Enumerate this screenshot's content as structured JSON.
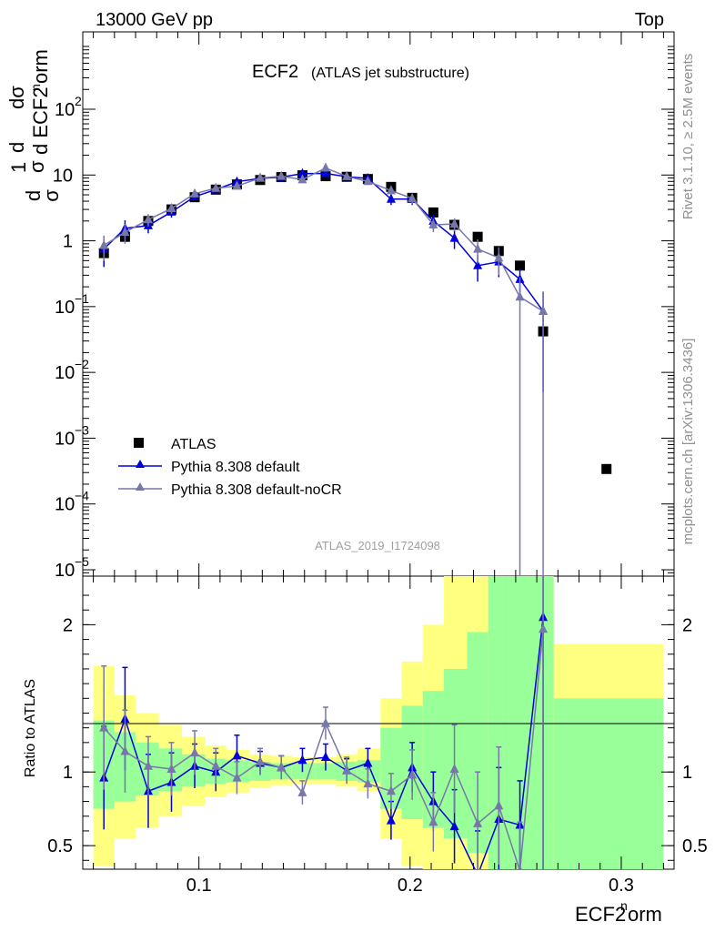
{
  "header": {
    "left": "13000 GeV pp",
    "right": "Top"
  },
  "watermarks": {
    "rivet": "Rivet 3.1.10, ≥ 2.5M events",
    "mcplots": "mcplots.cern.ch [arXiv:1306.3436]",
    "analysis": "ATLAS_2019_I1724098"
  },
  "chart_data": [
    {
      "type": "scatter",
      "panel": "main",
      "title": "ECF2",
      "subtitle": "(ATLAS jet substructure)",
      "ylabel": "1/σ dσ/d ECF2^norm",
      "yscale": "log",
      "xlim": [
        0.045,
        0.325
      ],
      "ylim": [
        8e-06,
        1500
      ],
      "y_ticks": [
        {
          "v": 1e-05,
          "m": "10",
          "e": "−5"
        },
        {
          "v": 0.0001,
          "m": "10",
          "e": "−4"
        },
        {
          "v": 0.001,
          "m": "10",
          "e": "−3"
        },
        {
          "v": 0.01,
          "m": "10",
          "e": "−2"
        },
        {
          "v": 0.1,
          "m": "10",
          "e": "−1"
        },
        {
          "v": 1,
          "m": "1",
          "e": ""
        },
        {
          "v": 10,
          "m": "10",
          "e": ""
        },
        {
          "v": 100,
          "m": "10",
          "e": "2"
        }
      ],
      "legend": [
        "ATLAS",
        "Pythia 8.308 default",
        "Pythia 8.308 default-noCR"
      ],
      "legend_position": "center-left",
      "series": [
        {
          "name": "ATLAS",
          "color": "#000000",
          "marker": "square",
          "x": [
            0.055,
            0.065,
            0.076,
            0.087,
            0.098,
            0.108,
            0.118,
            0.129,
            0.139,
            0.149,
            0.16,
            0.17,
            0.18,
            0.191,
            0.201,
            0.211,
            0.221,
            0.232,
            0.242,
            0.252,
            0.263,
            0.293
          ],
          "y": [
            0.65,
            1.15,
            2.0,
            3.0,
            4.6,
            6.0,
            7.2,
            8.4,
            9.3,
            9.9,
            9.6,
            9.4,
            8.7,
            6.6,
            4.5,
            2.7,
            1.75,
            1.15,
            0.7,
            0.42,
            0.042,
            0.00034
          ]
        },
        {
          "name": "Pythia 8.308 default",
          "color": "#0000dd",
          "marker": "triangle",
          "x": [
            0.055,
            0.065,
            0.076,
            0.087,
            0.098,
            0.108,
            0.118,
            0.129,
            0.139,
            0.149,
            0.16,
            0.17,
            0.18,
            0.191,
            0.201,
            0.211,
            0.221,
            0.232,
            0.242,
            0.252,
            0.263
          ],
          "y": [
            0.75,
            1.55,
            1.7,
            2.75,
            4.7,
            6.0,
            7.9,
            8.9,
            9.3,
            10.5,
            10.6,
            9.4,
            8.9,
            4.3,
            4.3,
            2.0,
            1.1,
            0.42,
            0.48,
            0.26,
            0.085
          ],
          "err": [
            0.35,
            0.5,
            0.4,
            0.5,
            0.6,
            0.6,
            0.8,
            0.8,
            0.8,
            0.9,
            0.9,
            0.9,
            0.9,
            0.8,
            0.8,
            0.5,
            0.35,
            0.18,
            0.2,
            0.12,
            0.08
          ]
        },
        {
          "name": "Pythia 8.308 default-noCR",
          "color": "#7777aa",
          "marker": "triangle",
          "x": [
            0.055,
            0.065,
            0.076,
            0.087,
            0.098,
            0.108,
            0.118,
            0.129,
            0.139,
            0.149,
            0.16,
            0.17,
            0.18,
            0.191,
            0.201,
            0.211,
            0.221,
            0.232,
            0.242,
            0.252,
            0.263
          ],
          "y": [
            0.85,
            1.35,
            2.1,
            3.1,
            5.2,
            6.3,
            6.8,
            9.0,
            9.6,
            8.5,
            12.8,
            9.5,
            8.0,
            5.8,
            4.4,
            1.75,
            1.8,
            0.75,
            0.55,
            0.14,
            0.085
          ],
          "err": [
            0.35,
            0.45,
            0.45,
            0.55,
            0.65,
            0.6,
            0.7,
            0.8,
            0.8,
            0.8,
            1.0,
            0.9,
            0.9,
            0.8,
            0.8,
            0.4,
            0.4,
            0.3,
            0.25,
            0.14,
            0.085
          ]
        }
      ]
    },
    {
      "type": "scatter",
      "panel": "ratio",
      "ylabel": "Ratio to ATLAS",
      "xlabel": "ECF2^norm",
      "xlim": [
        0.045,
        0.325
      ],
      "ylim": [
        0.34,
        2.33
      ],
      "x_ticks": [
        "0.1",
        "0.2",
        "0.3"
      ],
      "y_ticks": [
        "0.5",
        "1",
        "2"
      ],
      "bands": {
        "edges": [
          0.05,
          0.06,
          0.07,
          0.081,
          0.092,
          0.103,
          0.113,
          0.124,
          0.134,
          0.144,
          0.155,
          0.165,
          0.175,
          0.186,
          0.196,
          0.206,
          0.216,
          0.227,
          0.237,
          0.247,
          0.258,
          0.268,
          0.32
        ],
        "inner_lo": [
          0.75,
          0.8,
          0.84,
          0.87,
          0.9,
          0.92,
          0.93,
          0.94,
          0.95,
          0.95,
          0.95,
          0.94,
          0.93,
          0.75,
          0.68,
          0.62,
          0.55,
          0.45,
          0.34,
          0.34,
          0.34,
          0.34
        ],
        "inner_hi": [
          1.35,
          1.27,
          1.2,
          1.16,
          1.12,
          1.09,
          1.08,
          1.07,
          1.06,
          1.06,
          1.06,
          1.07,
          1.08,
          1.3,
          1.45,
          1.55,
          1.7,
          1.95,
          2.33,
          2.33,
          2.33,
          1.5
        ],
        "outer_lo": [
          0.36,
          0.55,
          0.62,
          0.7,
          0.77,
          0.83,
          0.86,
          0.89,
          0.91,
          0.92,
          0.92,
          0.9,
          0.87,
          0.55,
          0.36,
          0.34,
          0.34,
          0.34,
          0.34,
          0.34,
          0.34,
          0.34
        ],
        "outer_hi": [
          1.72,
          1.52,
          1.4,
          1.32,
          1.24,
          1.18,
          1.15,
          1.12,
          1.11,
          1.1,
          1.1,
          1.12,
          1.16,
          1.5,
          1.75,
          2.0,
          2.33,
          2.33,
          2.33,
          2.33,
          2.33,
          1.87
        ]
      },
      "series": [
        {
          "name": "Pythia 8.308 default",
          "color": "#0000dd",
          "x": [
            0.055,
            0.065,
            0.076,
            0.087,
            0.098,
            0.108,
            0.118,
            0.129,
            0.139,
            0.149,
            0.16,
            0.17,
            0.18,
            0.191,
            0.201,
            0.211,
            0.221,
            0.232,
            0.242,
            0.252,
            0.263
          ],
          "y": [
            0.96,
            1.36,
            0.87,
            0.93,
            1.04,
            1.0,
            1.11,
            1.06,
            1.03,
            1.08,
            1.1,
            1.01,
            1.06,
            0.67,
            1.03,
            0.8,
            0.63,
            0.3,
            0.68,
            0.64,
            2.05
          ],
          "err": [
            0.35,
            0.35,
            0.25,
            0.2,
            0.15,
            0.13,
            0.14,
            0.08,
            0.08,
            0.08,
            0.09,
            0.08,
            0.1,
            0.13,
            0.17,
            0.2,
            0.25,
            0.3,
            0.35,
            0.3,
            2.05
          ]
        },
        {
          "name": "Pythia 8.308 default-noCR",
          "color": "#7777aa",
          "x": [
            0.055,
            0.065,
            0.076,
            0.087,
            0.098,
            0.108,
            0.118,
            0.129,
            0.139,
            0.149,
            0.16,
            0.17,
            0.18,
            0.191,
            0.201,
            0.211,
            0.221,
            0.232,
            0.242,
            0.252,
            0.263
          ],
          "y": [
            1.3,
            1.14,
            1.04,
            1.02,
            1.13,
            1.04,
            0.96,
            1.07,
            1.03,
            0.86,
            1.33,
            1.01,
            0.92,
            0.87,
            0.98,
            0.66,
            1.02,
            0.65,
            0.77,
            0.33,
            1.97
          ],
          "err": [
            0.42,
            0.28,
            0.2,
            0.18,
            0.15,
            0.12,
            0.11,
            0.09,
            0.08,
            0.08,
            0.11,
            0.09,
            0.1,
            0.12,
            0.17,
            0.2,
            0.3,
            0.35,
            0.4,
            0.33,
            1.97
          ]
        }
      ]
    }
  ]
}
